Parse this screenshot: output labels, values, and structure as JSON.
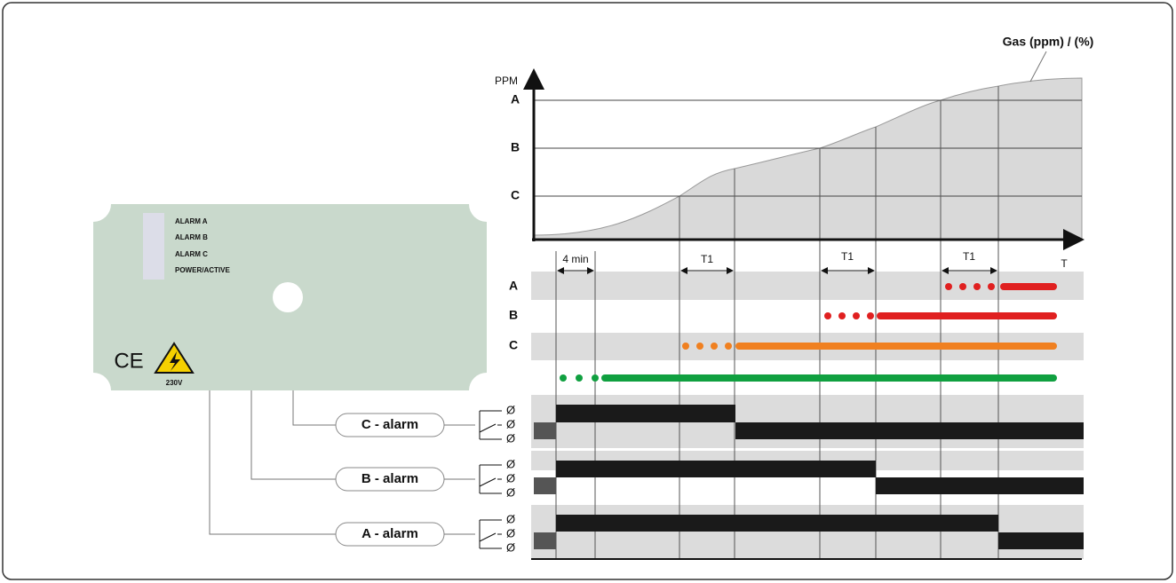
{
  "device": {
    "leds": [
      "ALARM A",
      "ALARM B",
      "ALARM C",
      "POWER/ACTIVE"
    ],
    "ce_mark": "CE",
    "voltage": "230V"
  },
  "relays": [
    {
      "label": "C - alarm",
      "terminals": [
        "Ø",
        "Ø",
        "Ø"
      ]
    },
    {
      "label": "B - alarm",
      "terminals": [
        "Ø",
        "Ø",
        "Ø"
      ]
    },
    {
      "label": "A - alarm",
      "terminals": [
        "Ø",
        "Ø",
        "Ø"
      ]
    }
  ],
  "graph": {
    "y_axis_label": "PPM",
    "levels": [
      "A",
      "B",
      "C"
    ],
    "curve_label": "Gas (ppm) / (%)",
    "x_axis_label": "T",
    "intervals": [
      "4 min",
      "T1",
      "T1",
      "T1"
    ]
  },
  "timeline": {
    "rows": [
      "A",
      "B",
      "C"
    ]
  }
}
